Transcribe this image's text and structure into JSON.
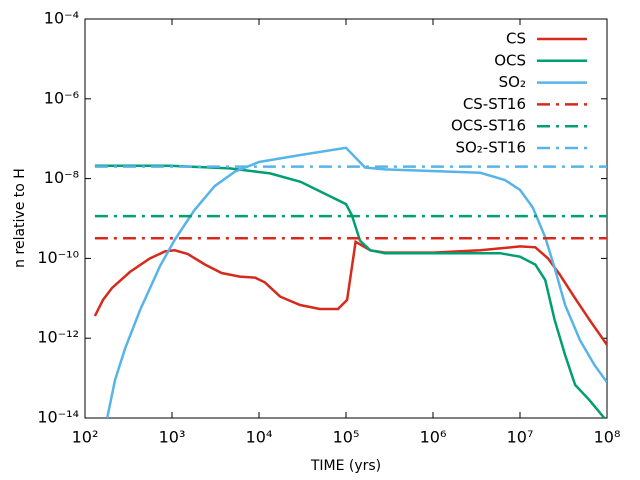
{
  "chart_data": {
    "type": "line",
    "xlabel": "TIME (yrs)",
    "ylabel": "n relative to H",
    "xscale": "log",
    "yscale": "log",
    "xlim": [
      100,
      100000000
    ],
    "ylim": [
      1e-14,
      0.0001
    ],
    "xticks": [
      {
        "value": 100,
        "label": "10²"
      },
      {
        "value": 1000,
        "label": "10³"
      },
      {
        "value": 10000,
        "label": "10⁴"
      },
      {
        "value": 100000,
        "label": "10⁵"
      },
      {
        "value": 1000000,
        "label": "10⁶"
      },
      {
        "value": 10000000,
        "label": "10⁷"
      },
      {
        "value": 100000000,
        "label": "10⁸"
      }
    ],
    "yticks": [
      {
        "value": 1e-14,
        "label": "10⁻¹⁴"
      },
      {
        "value": 1e-12,
        "label": "10⁻¹²"
      },
      {
        "value": 1e-10,
        "label": "10⁻¹⁰"
      },
      {
        "value": 1e-08,
        "label": "10⁻⁸"
      },
      {
        "value": 1e-06,
        "label": "10⁻⁶"
      },
      {
        "value": 0.0001,
        "label": "10⁻⁴"
      }
    ],
    "legend": "upper right",
    "series": [
      {
        "name": "CS",
        "color": "#d62a1c",
        "linestyle": "solid",
        "x": [
          130,
          161,
          204,
          329,
          558,
          832,
          1070,
          1510,
          2400,
          3720,
          6000,
          9000,
          11700,
          17500,
          29700,
          50000,
          81000,
          103000,
          129000,
          190000,
          280000,
          1000000,
          3500000,
          10000000,
          15000000,
          21000000,
          29000000,
          43000000,
          63000000,
          100000000
        ],
        "values": [
          3.6e-12,
          9.1e-12,
          1.8e-11,
          4.6e-11,
          1e-10,
          1.5e-10,
          1.6e-10,
          1.3e-10,
          7e-11,
          4.3e-11,
          3.5e-11,
          3.3e-11,
          2.5e-11,
          1.1e-11,
          6.8e-12,
          5.4e-12,
          5.4e-12,
          9.1e-12,
          2.6e-10,
          1.6e-10,
          1.4e-10,
          1.4e-10,
          1.6e-10,
          2e-10,
          1.9e-10,
          1e-10,
          3.8e-11,
          1e-11,
          2.9e-12,
          6.8e-13
        ]
      },
      {
        "name": "OCS",
        "color": "#009e73",
        "linestyle": "solid",
        "x": [
          130,
          950,
          4600,
          13400,
          30000,
          58000,
          100000,
          117000,
          145000,
          190000,
          280000,
          5900000,
          10000000,
          15000000,
          19500000,
          25000000,
          33000000,
          43000000,
          63000000,
          93000000
        ],
        "values": [
          2.1e-08,
          2.1e-08,
          1.8e-08,
          1.35e-08,
          8.3e-09,
          4.1e-09,
          2.3e-09,
          1.2e-09,
          2.8e-10,
          1.6e-10,
          1.35e-10,
          1.35e-10,
          1.1e-10,
          7e-11,
          2.9e-11,
          2.9e-12,
          3.8e-13,
          6.8e-14,
          2.8e-14,
          1e-14
        ]
      },
      {
        "name": "SO₂",
        "color": "#56b4e9",
        "linestyle": "solid",
        "x": [
          180,
          221,
          290,
          430,
          730,
          1070,
          1800,
          3100,
          5300,
          10000,
          30000,
          100000,
          166000,
          280000,
          3500000,
          6700000,
          10000000,
          14000000,
          19500000,
          25000000,
          33000000,
          49000000,
          72000000,
          100000000
        ],
        "values": [
          1e-14,
          8.9e-14,
          5.6e-13,
          5.1e-12,
          6.5e-11,
          2.9e-10,
          1.6e-09,
          6.5e-09,
          1.5e-08,
          2.6e-08,
          3.9e-08,
          5.9e-08,
          1.9e-08,
          1.7e-08,
          1.4e-08,
          9.2e-09,
          5.2e-09,
          1.9e-09,
          3.4e-10,
          5.8e-11,
          6.8e-12,
          8.9e-13,
          2.1e-13,
          7.9e-14
        ]
      },
      {
        "name": "CS-ST16",
        "color": "#d62a1c",
        "linestyle": "dashdot",
        "x": [
          130,
          100000000
        ],
        "values": [
          3.2e-10,
          3.2e-10
        ]
      },
      {
        "name": "OCS-ST16",
        "color": "#009e73",
        "linestyle": "dashdot",
        "x": [
          130,
          100000000
        ],
        "values": [
          1.15e-09,
          1.15e-09
        ]
      },
      {
        "name": "SO₂-ST16",
        "color": "#56b4e9",
        "linestyle": "dashdot",
        "x": [
          130,
          100000000
        ],
        "values": [
          2e-08,
          2e-08
        ]
      }
    ]
  }
}
